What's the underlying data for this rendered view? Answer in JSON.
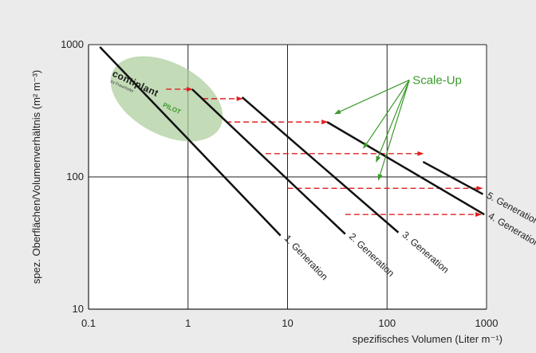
{
  "chart_data": {
    "type": "line",
    "x_scale": "log",
    "y_scale": "log",
    "xlim": [
      0.1,
      1000
    ],
    "ylim": [
      10,
      1000
    ],
    "xlabel": "spezifisches Volumen (Liter m⁻¹)",
    "ylabel": "spez. Oberflächen/Volumenverhältnis (m² m⁻³)",
    "x_ticks": [
      "0.1",
      "1",
      "10",
      "100",
      "1000"
    ],
    "y_ticks": [
      "1000",
      "100",
      "10"
    ],
    "grid": true,
    "series": [
      {
        "name": "1. Generation",
        "x": [
          0.13,
          8.5
        ],
        "y": [
          960,
          36
        ]
      },
      {
        "name": "2. Generation",
        "x": [
          1.1,
          38
        ],
        "y": [
          460,
          37
        ]
      },
      {
        "name": "3. Generation",
        "x": [
          3.5,
          130
        ],
        "y": [
          400,
          38
        ]
      },
      {
        "name": "4. Generation",
        "x": [
          25,
          950
        ],
        "y": [
          260,
          52
        ]
      },
      {
        "name": "5. Generation",
        "x": [
          230,
          920
        ],
        "y": [
          130,
          74
        ]
      }
    ],
    "arrows": [
      {
        "from": [
          0.6,
          460
        ],
        "to": [
          1.1,
          460
        ]
      },
      {
        "from": [
          1.4,
          390
        ],
        "to": [
          3.5,
          390
        ]
      },
      {
        "from": [
          2.4,
          260
        ],
        "to": [
          25,
          260
        ]
      },
      {
        "from": [
          6,
          150
        ],
        "to": [
          230,
          150
        ]
      },
      {
        "from": [
          10,
          82
        ],
        "to": [
          900,
          82
        ]
      },
      {
        "from": [
          38,
          52
        ],
        "to": [
          880,
          52
        ]
      }
    ],
    "annotation": "Scale-Up",
    "logo": {
      "main": "contiplant",
      "sub": "PILOT",
      "tagline": "by Fraunhofer"
    }
  }
}
